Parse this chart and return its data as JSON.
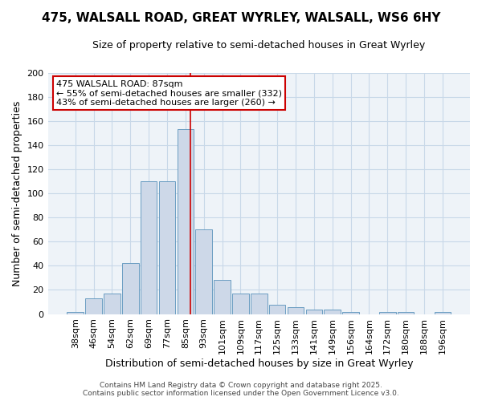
{
  "title": "475, WALSALL ROAD, GREAT WYRLEY, WALSALL, WS6 6HY",
  "subtitle": "Size of property relative to semi-detached houses in Great Wyrley",
  "xlabel": "Distribution of semi-detached houses by size in Great Wyrley",
  "ylabel": "Number of semi-detached properties",
  "categories": [
    "38sqm",
    "46sqm",
    "54sqm",
    "62sqm",
    "69sqm",
    "77sqm",
    "85sqm",
    "93sqm",
    "101sqm",
    "109sqm",
    "117sqm",
    "125sqm",
    "133sqm",
    "141sqm",
    "149sqm",
    "156sqm",
    "164sqm",
    "172sqm",
    "180sqm",
    "188sqm",
    "196sqm"
  ],
  "values": [
    2,
    13,
    17,
    42,
    110,
    110,
    153,
    70,
    28,
    17,
    17,
    8,
    6,
    4,
    4,
    2,
    0,
    2,
    2,
    0,
    2
  ],
  "bar_color": "#cdd8e8",
  "bar_edge_color": "#6b9dc2",
  "vline_color": "#cc0000",
  "vline_x_index": 6,
  "vline_x_offset": 0.25,
  "annotation_text": "475 WALSALL ROAD: 87sqm\n← 55% of semi-detached houses are smaller (332)\n43% of semi-detached houses are larger (260) →",
  "annotation_box_color": "#ffffff",
  "annotation_box_edge": "#cc0000",
  "footer": "Contains HM Land Registry data © Crown copyright and database right 2025.\nContains public sector information licensed under the Open Government Licence v3.0.",
  "background_color": "#ffffff",
  "plot_bg_color": "#eef3f8",
  "grid_color": "#c8d8e8",
  "ylim": [
    0,
    200
  ],
  "yticks": [
    0,
    20,
    40,
    60,
    80,
    100,
    120,
    140,
    160,
    180,
    200
  ],
  "title_fontsize": 11,
  "subtitle_fontsize": 9,
  "ylabel_fontsize": 9,
  "xlabel_fontsize": 9,
  "tick_fontsize": 8,
  "annot_fontsize": 8,
  "footer_fontsize": 6.5
}
